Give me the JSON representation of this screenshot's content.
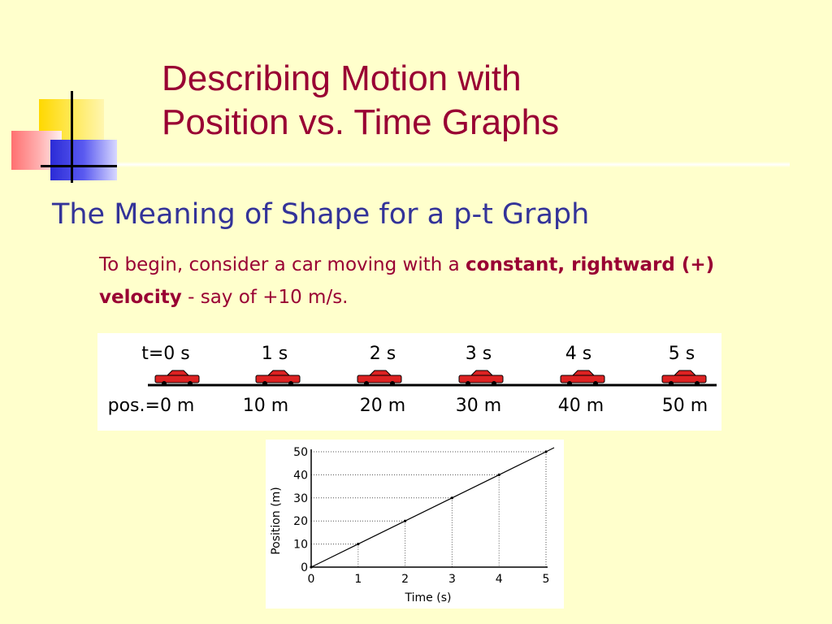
{
  "title": {
    "line1": "Describing Motion with",
    "line2": "Position vs. Time Graphs"
  },
  "subtitle": "The Meaning of Shape for a p-t Graph",
  "body": {
    "part1": "To begin, consider a car moving with a ",
    "bold": "constant, rightward (+) velocity",
    "part2": " - say of +10 m/s."
  },
  "car_strip": {
    "time_labels": [
      "t=0 s",
      "1 s",
      "2 s",
      "3 s",
      "4 s",
      "5 s"
    ],
    "position_labels": [
      "pos.=0 m",
      "10 m",
      "20 m",
      "30 m",
      "40 m",
      "50 m"
    ],
    "car_color": "#dd2222"
  },
  "colors": {
    "background": "#ffffcc",
    "title": "#990033",
    "subtitle": "#333399",
    "body": "#990033"
  },
  "chart_data": {
    "type": "line",
    "xlabel": "Time (s)",
    "ylabel": "Position (m)",
    "x": [
      0,
      1,
      2,
      3,
      4,
      5
    ],
    "xticks": [
      "0",
      "1",
      "2",
      "3",
      "4",
      "5"
    ],
    "yticks": [
      "0",
      "10",
      "20",
      "30",
      "40",
      "50"
    ],
    "xlim": [
      0,
      5
    ],
    "ylim": [
      0,
      50
    ],
    "grid": "dotted drop lines",
    "series": [
      {
        "values": [
          0,
          10,
          20,
          30,
          40,
          50
        ]
      }
    ]
  }
}
